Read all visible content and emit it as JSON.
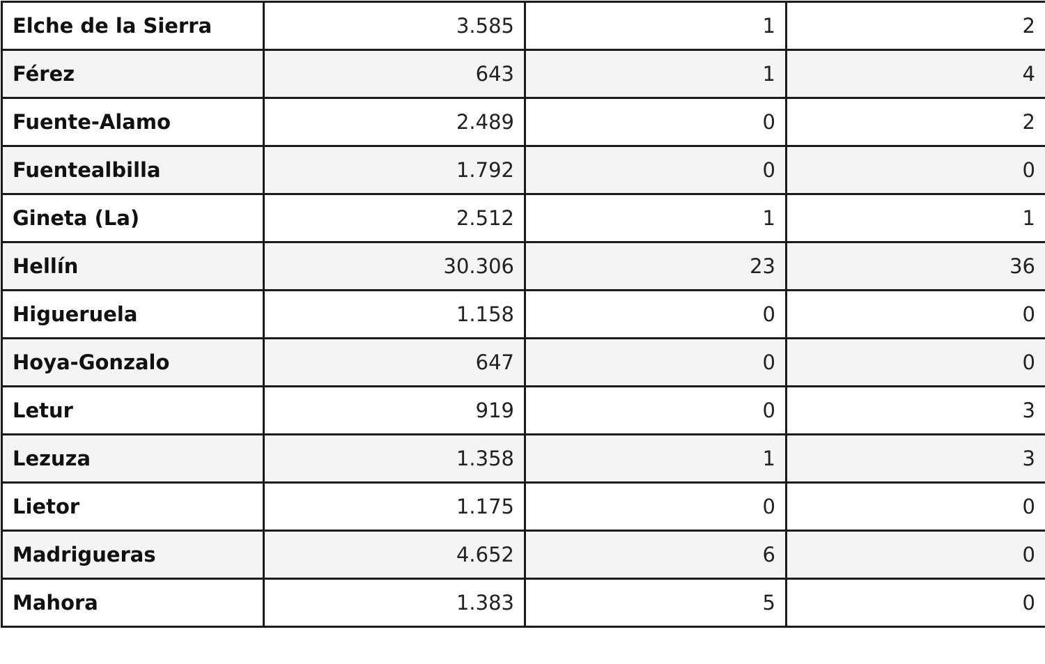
{
  "rows": [
    {
      "name": "Elche de la Sierra",
      "v1": "3.585",
      "v2": "1",
      "v3": "2"
    },
    {
      "name": "Férez",
      "v1": "643",
      "v2": "1",
      "v3": "4"
    },
    {
      "name": "Fuente-Alamo",
      "v1": "2.489",
      "v2": "0",
      "v3": "2"
    },
    {
      "name": "Fuentealbilla",
      "v1": "1.792",
      "v2": "0",
      "v3": "0"
    },
    {
      "name": "Gineta (La)",
      "v1": "2.512",
      "v2": "1",
      "v3": "1"
    },
    {
      "name": "Hellín",
      "v1": "30.306",
      "v2": "23",
      "v3": "36"
    },
    {
      "name": "Higueruela",
      "v1": "1.158",
      "v2": "0",
      "v3": "0"
    },
    {
      "name": "Hoya-Gonzalo",
      "v1": "647",
      "v2": "0",
      "v3": "0"
    },
    {
      "name": "Letur",
      "v1": "919",
      "v2": "0",
      "v3": "3"
    },
    {
      "name": "Lezuza",
      "v1": "1.358",
      "v2": "1",
      "v3": "3"
    },
    {
      "name": "Lietor",
      "v1": "1.175",
      "v2": "0",
      "v3": "0"
    },
    {
      "name": "Madrigueras",
      "v1": "4.652",
      "v2": "6",
      "v3": "0"
    },
    {
      "name": "Mahora",
      "v1": "1.383",
      "v2": "5",
      "v3": "0"
    }
  ]
}
